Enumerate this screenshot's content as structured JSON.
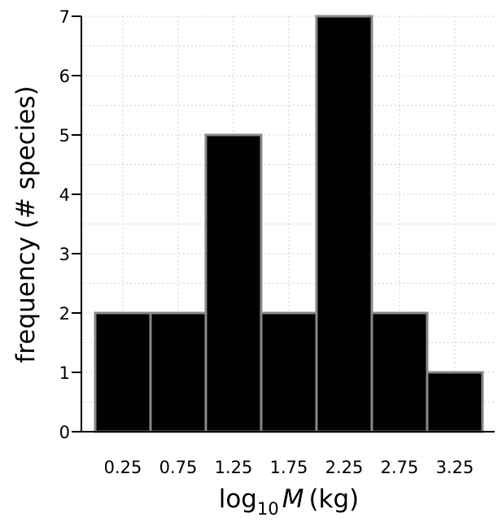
{
  "chart_data": {
    "type": "bar",
    "categories": [
      "0.25",
      "0.75",
      "1.25",
      "1.75",
      "2.25",
      "2.75",
      "3.25"
    ],
    "values": [
      2,
      2,
      5,
      2,
      7,
      2,
      1
    ],
    "title": "",
    "xlabel": {
      "prefix": "log",
      "subscript": "10",
      "variable": "M",
      "unit": "(kg)"
    },
    "ylabel": "frequency (# species)",
    "ylim": [
      0,
      7
    ],
    "yticks": [
      "0",
      "1",
      "2",
      "3",
      "4",
      "5",
      "6",
      "7"
    ],
    "grid": true,
    "colors": {
      "bar_fill": "#000000",
      "bar_edge": "#888888",
      "grid": "#cfcfcf"
    }
  }
}
